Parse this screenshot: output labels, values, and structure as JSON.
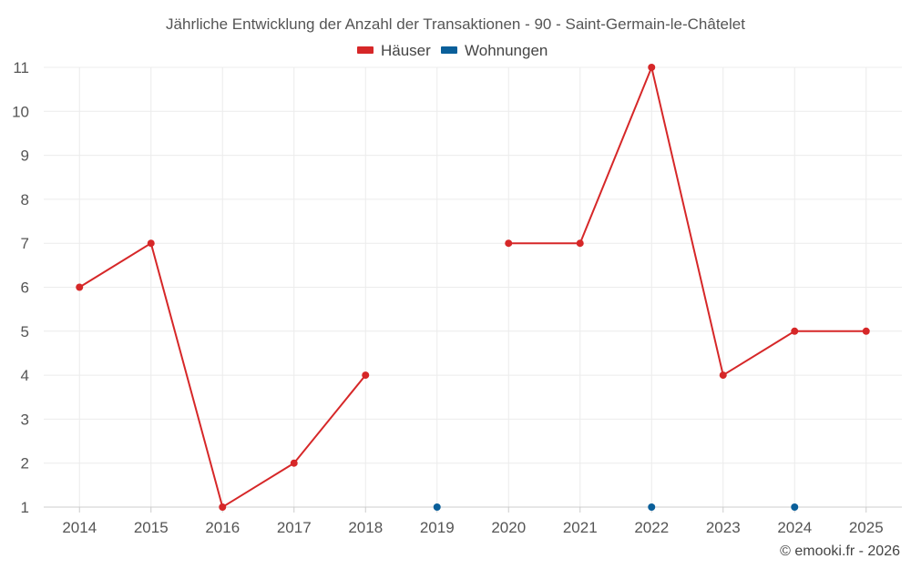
{
  "colors": {
    "houses": "#d62728",
    "apartments": "#0a5f9a"
  },
  "chart_data": {
    "type": "line",
    "title": "Jährliche Entwicklung der Anzahl der Transaktionen - 90 - Saint-Germain-le-Châtelet",
    "categories": [
      "2014",
      "2015",
      "2016",
      "2017",
      "2018",
      "2019",
      "2020",
      "2021",
      "2022",
      "2023",
      "2024",
      "2025"
    ],
    "ylim": [
      1,
      11
    ],
    "yticks": [
      1,
      2,
      3,
      4,
      5,
      6,
      7,
      8,
      9,
      10,
      11
    ],
    "grid": true,
    "legend_position": "top-center",
    "series": [
      {
        "name": "Häuser",
        "color": "#d62728",
        "values": [
          6,
          7,
          1,
          2,
          4,
          null,
          7,
          7,
          11,
          4,
          5,
          5
        ]
      },
      {
        "name": "Wohnungen",
        "color": "#0a5f9a",
        "values": [
          null,
          null,
          null,
          null,
          null,
          1,
          null,
          null,
          1,
          null,
          1,
          null
        ]
      }
    ],
    "credit": "© emooki.fr - 2026"
  }
}
